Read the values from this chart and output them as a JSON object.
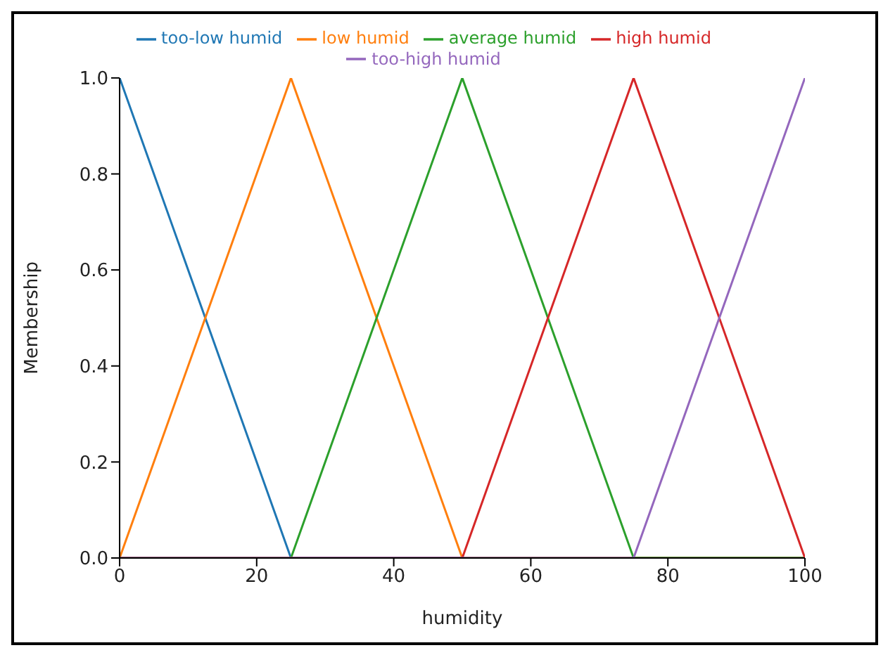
{
  "chart_data": {
    "type": "line",
    "xlabel": "humidity",
    "ylabel": "Membership",
    "xlim": [
      0,
      100
    ],
    "xticks": [
      0,
      20,
      40,
      60,
      80,
      100
    ],
    "ylim": [
      0,
      1
    ],
    "yticks": [
      {
        "value": 0,
        "label": "0.0"
      },
      {
        "value": 0.2,
        "label": "0.2"
      },
      {
        "value": 0.4,
        "label": "0.4"
      },
      {
        "value": 0.6,
        "label": "0.6"
      },
      {
        "value": 0.8,
        "label": "0.8"
      },
      {
        "value": 1,
        "label": "1.0"
      }
    ],
    "grid": false,
    "legend": "top",
    "marker": "none",
    "line_style": "solid",
    "series": [
      {
        "name": "too-low humid",
        "color": "#1f77b4",
        "x": [
          0,
          25,
          100
        ],
        "values": [
          1,
          0,
          0
        ]
      },
      {
        "name": "low humid",
        "color": "#ff7f0e",
        "x": [
          0,
          25,
          50,
          100
        ],
        "values": [
          0,
          1,
          0,
          0
        ]
      },
      {
        "name": "average humid",
        "color": "#2ca02c",
        "x": [
          0,
          25,
          50,
          75,
          100
        ],
        "values": [
          0,
          0,
          1,
          0,
          0
        ]
      },
      {
        "name": "high humid",
        "color": "#d62728",
        "x": [
          0,
          50,
          75,
          100
        ],
        "values": [
          0,
          0,
          1,
          0
        ]
      },
      {
        "name": "too-high humid",
        "color": "#9467bd",
        "x": [
          0,
          75,
          100
        ],
        "values": [
          0,
          0,
          1
        ]
      }
    ]
  }
}
